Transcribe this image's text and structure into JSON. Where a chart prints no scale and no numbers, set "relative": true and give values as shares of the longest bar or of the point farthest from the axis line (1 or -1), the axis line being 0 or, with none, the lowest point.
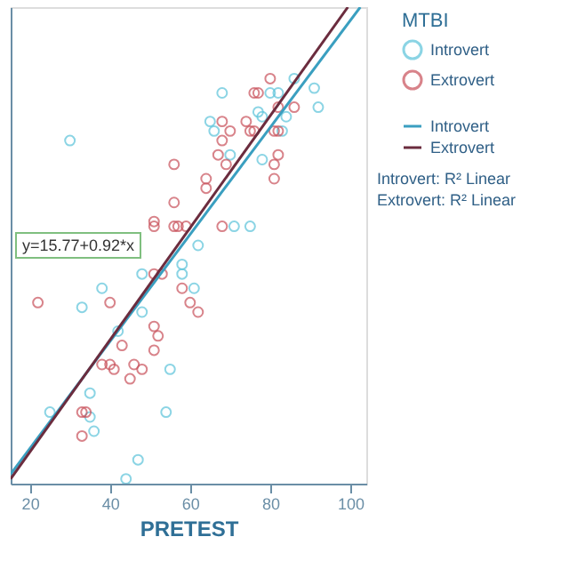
{
  "chart_data": {
    "type": "scatter",
    "relative": true,
    "xlabel": "PRETEST",
    "legend_title": "MTBI",
    "legend": "right",
    "grid": false,
    "marker": "circle",
    "tick_labels": "x",
    "xlim": [
      15.2,
      104
    ],
    "xticks": [
      20,
      40,
      60,
      80,
      100
    ],
    "annotations": [
      "y=15.77+0.92*x",
      "Introvert: R² Linear",
      "Extrovert: R² Linear"
    ],
    "series": [
      {
        "name": "Introvert",
        "color": "#5bc3da",
        "x": [
          30,
          68,
          65,
          66,
          70,
          62,
          58,
          48,
          58,
          38,
          33,
          48,
          61,
          42,
          55,
          35,
          25,
          35,
          54,
          36,
          47,
          44,
          86,
          91,
          80,
          82,
          92,
          77,
          78,
          84,
          83,
          78,
          71,
          75
        ],
        "values": [
          0.72,
          0.82,
          0.76,
          0.74,
          0.69,
          0.5,
          0.46,
          0.44,
          0.44,
          0.41,
          0.37,
          0.36,
          0.41,
          0.32,
          0.24,
          0.19,
          0.15,
          0.14,
          0.15,
          0.11,
          0.05,
          0.01,
          0.85,
          0.83,
          0.82,
          0.82,
          0.79,
          0.78,
          0.77,
          0.77,
          0.74,
          0.68,
          0.54,
          0.54
        ]
      },
      {
        "name": "Extrovert",
        "color": "#c8505a",
        "x": [
          68,
          70,
          68,
          67,
          69,
          56,
          64,
          64,
          56,
          51,
          51,
          56,
          57,
          59,
          68,
          51,
          53,
          22,
          40,
          58,
          60,
          62,
          51,
          52,
          43,
          51,
          38,
          40,
          41,
          46,
          48,
          45,
          33,
          34,
          33,
          80,
          76,
          77,
          82,
          86,
          74,
          75,
          76,
          81,
          82,
          82,
          81,
          81
        ],
        "values": [
          0.76,
          0.74,
          0.72,
          0.69,
          0.67,
          0.67,
          0.64,
          0.62,
          0.59,
          0.55,
          0.54,
          0.54,
          0.54,
          0.54,
          0.54,
          0.44,
          0.44,
          0.38,
          0.38,
          0.41,
          0.38,
          0.36,
          0.33,
          0.31,
          0.29,
          0.28,
          0.25,
          0.25,
          0.24,
          0.25,
          0.24,
          0.22,
          0.15,
          0.15,
          0.1,
          0.85,
          0.82,
          0.82,
          0.79,
          0.79,
          0.76,
          0.74,
          0.74,
          0.74,
          0.74,
          0.69,
          0.67,
          0.64
        ]
      },
      {
        "name": "Introvert",
        "type": "line",
        "marker": "none",
        "line_style": "solid",
        "color": "#3a9fc0",
        "x": [
          15.2,
          102.5
        ],
        "values": [
          0.02,
          1.0
        ]
      },
      {
        "name": "Extrovert",
        "type": "line",
        "marker": "none",
        "line_style": "solid",
        "color": "#6b2c3e",
        "x": [
          15.2,
          99.4
        ],
        "values": [
          0.01,
          1.0
        ]
      }
    ]
  }
}
